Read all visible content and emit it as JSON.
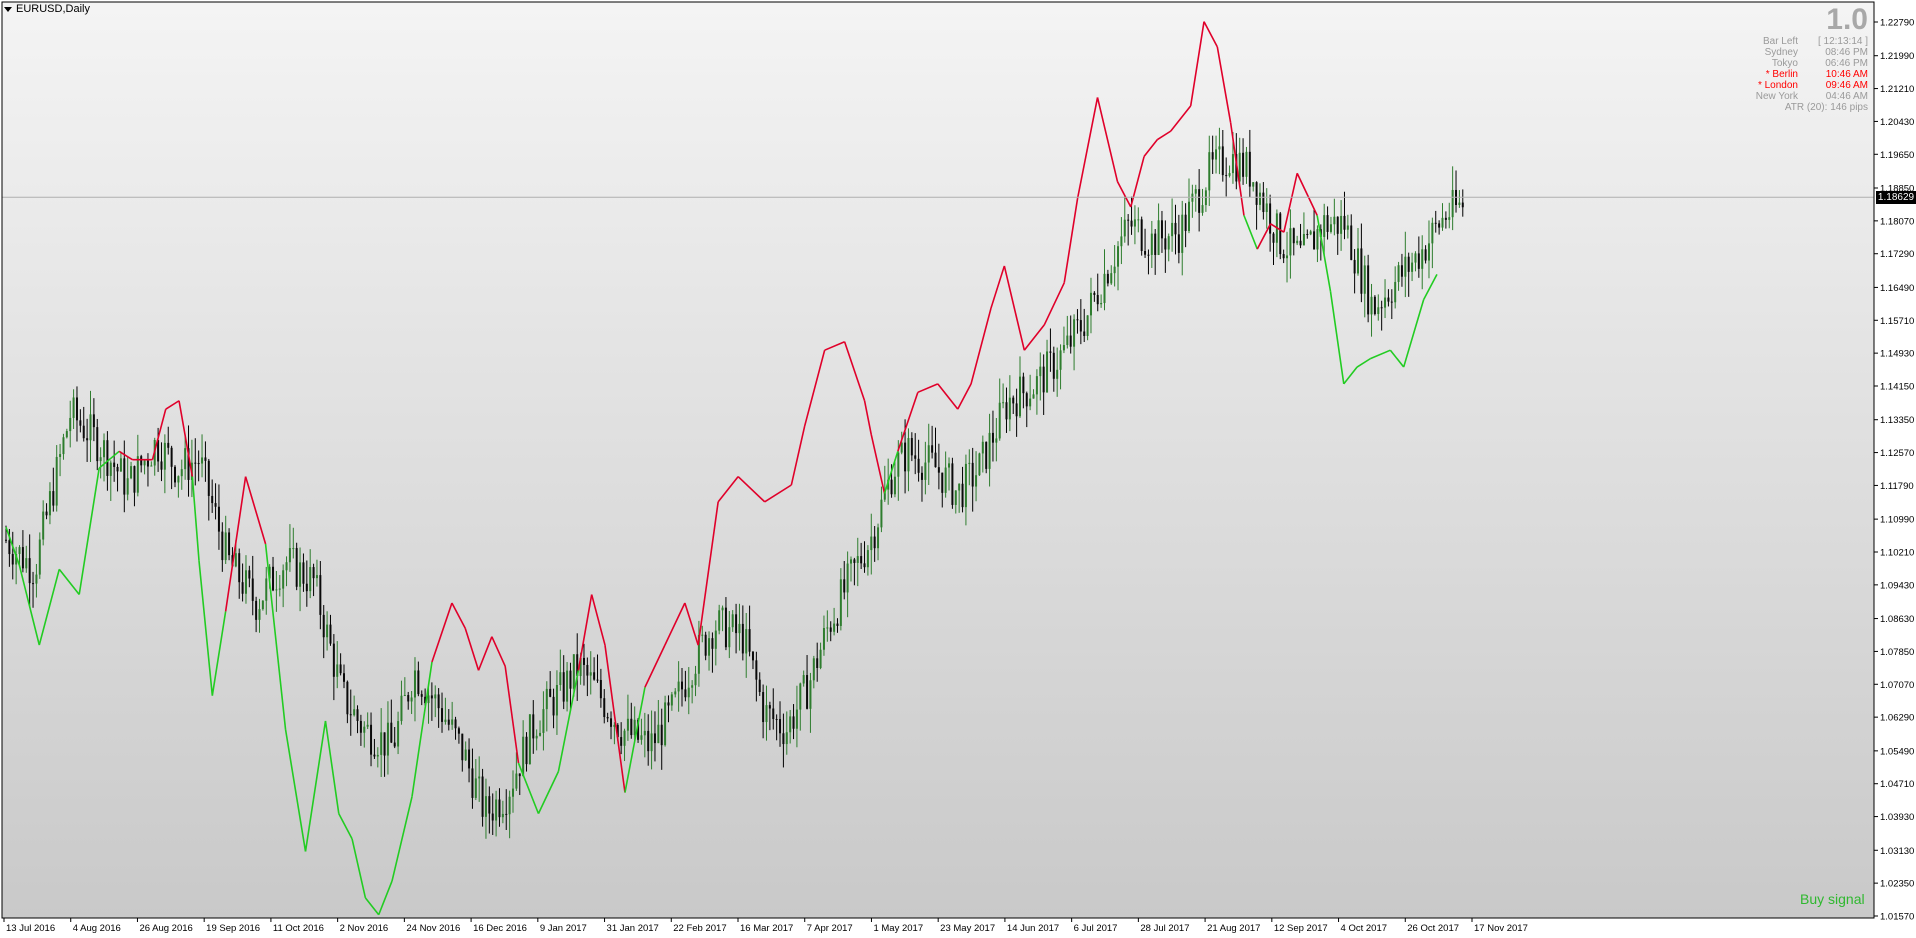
{
  "window": {
    "title": "EURUSD,Daily"
  },
  "info_panel": {
    "big_value": "1.0",
    "rows": [
      {
        "label": "Bar Left",
        "value": "[ 12:13:14 ]",
        "highlight": false
      },
      {
        "label": "Sydney",
        "value": "08:46 PM",
        "highlight": false
      },
      {
        "label": "Tokyo",
        "value": "06:46 PM",
        "highlight": false
      },
      {
        "label": "* Berlin",
        "value": "10:46 AM",
        "highlight": true
      },
      {
        "label": "* London",
        "value": "09:46 AM",
        "highlight": true
      },
      {
        "label": "New York",
        "value": "04:46 AM",
        "highlight": false
      }
    ],
    "atr": "ATR (20): 146 pips"
  },
  "signal_text": "Buy signal",
  "current_price": "1.18629",
  "colors": {
    "bull": "#2e7d2e",
    "bear": "#000000",
    "stop_up": "#22cc22",
    "stop_down": "#e0002a",
    "axis": "#000000",
    "grid": "#b0b0b0"
  },
  "chart_data": {
    "type": "candlestick",
    "symbol": "EURUSD",
    "timeframe": "Daily",
    "x_labels": [
      "13 Jul 2016",
      "4 Aug 2016",
      "26 Aug 2016",
      "19 Sep 2016",
      "11 Oct 2016",
      "2 Nov 2016",
      "24 Nov 2016",
      "16 Dec 2016",
      "9 Jan 2017",
      "31 Jan 2017",
      "22 Feb 2017",
      "16 Mar 2017",
      "7 Apr 2017",
      "1 May 2017",
      "23 May 2017",
      "14 Jun 2017",
      "6 Jul 2017",
      "28 Jul 2017",
      "21 Aug 2017",
      "12 Sep 2017",
      "4 Oct 2017",
      "26 Oct 2017",
      "17 Nov 2017"
    ],
    "y_labels": [
      "1.22790",
      "1.21990",
      "1.21210",
      "1.20430",
      "1.19650",
      "1.18850",
      "1.18070",
      "1.17290",
      "1.16490",
      "1.15710",
      "1.14930",
      "1.14150",
      "1.13350",
      "1.12570",
      "1.11790",
      "1.10990",
      "1.10210",
      "1.09430",
      "1.08630",
      "1.07850",
      "1.07070",
      "1.06290",
      "1.05490",
      "1.04710",
      "1.03930",
      "1.03130",
      "1.02350",
      "1.01570"
    ],
    "ylim": [
      1.0157,
      1.2279
    ],
    "current_price": 1.18629,
    "close_path": [
      [
        0,
        1.105
      ],
      [
        8,
        1.098
      ],
      [
        18,
        1.135
      ],
      [
        26,
        1.128
      ],
      [
        34,
        1.118
      ],
      [
        42,
        1.128
      ],
      [
        48,
        1.122
      ],
      [
        54,
        1.124
      ],
      [
        62,
        1.1
      ],
      [
        70,
        1.09
      ],
      [
        78,
        1.1
      ],
      [
        86,
        1.095
      ],
      [
        94,
        1.068
      ],
      [
        100,
        1.06
      ],
      [
        108,
        1.056
      ],
      [
        114,
        1.074
      ],
      [
        122,
        1.064
      ],
      [
        128,
        1.054
      ],
      [
        134,
        1.04
      ],
      [
        140,
        1.045
      ],
      [
        148,
        1.062
      ],
      [
        156,
        1.07
      ],
      [
        160,
        1.075
      ],
      [
        166,
        1.068
      ],
      [
        172,
        1.06
      ],
      [
        180,
        1.056
      ],
      [
        186,
        1.064
      ],
      [
        192,
        1.076
      ],
      [
        198,
        1.085
      ],
      [
        206,
        1.082
      ],
      [
        212,
        1.064
      ],
      [
        218,
        1.06
      ],
      [
        224,
        1.07
      ],
      [
        230,
        1.085
      ],
      [
        236,
        1.096
      ],
      [
        242,
        1.106
      ],
      [
        248,
        1.122
      ],
      [
        252,
        1.126
      ],
      [
        260,
        1.122
      ],
      [
        266,
        1.116
      ],
      [
        272,
        1.122
      ],
      [
        280,
        1.138
      ],
      [
        288,
        1.142
      ],
      [
        296,
        1.15
      ],
      [
        302,
        1.158
      ],
      [
        308,
        1.17
      ],
      [
        314,
        1.18
      ],
      [
        320,
        1.176
      ],
      [
        328,
        1.178
      ],
      [
        336,
        1.192
      ],
      [
        342,
        1.196
      ],
      [
        348,
        1.192
      ],
      [
        356,
        1.176
      ],
      [
        362,
        1.172
      ],
      [
        368,
        1.18
      ],
      [
        374,
        1.18
      ],
      [
        382,
        1.16
      ],
      [
        390,
        1.168
      ],
      [
        396,
        1.174
      ],
      [
        402,
        1.182
      ],
      [
        408,
        1.185
      ]
    ],
    "stop_path": [
      [
        0,
        1.108
      ],
      [
        4,
        1.099
      ],
      [
        10,
        1.08
      ],
      [
        16,
        1.098
      ],
      [
        22,
        1.092
      ],
      [
        28,
        1.122
      ],
      [
        34,
        1.126
      ],
      [
        38,
        1.124
      ],
      [
        44,
        1.124
      ],
      [
        48,
        1.136
      ],
      [
        52,
        1.138
      ],
      [
        56,
        1.12
      ],
      [
        58,
        1.1
      ],
      [
        62,
        1.068
      ],
      [
        66,
        1.088
      ],
      [
        72,
        1.12
      ],
      [
        78,
        1.104
      ],
      [
        84,
        1.06
      ],
      [
        90,
        1.031
      ],
      [
        96,
        1.062
      ],
      [
        100,
        1.04
      ],
      [
        104,
        1.034
      ],
      [
        108,
        1.02
      ],
      [
        112,
        1.016
      ],
      [
        116,
        1.024
      ],
      [
        122,
        1.044
      ],
      [
        128,
        1.076
      ],
      [
        134,
        1.09
      ],
      [
        138,
        1.084
      ],
      [
        142,
        1.074
      ],
      [
        146,
        1.082
      ],
      [
        150,
        1.075
      ],
      [
        154,
        1.052
      ],
      [
        160,
        1.04
      ],
      [
        166,
        1.05
      ],
      [
        172,
        1.074
      ],
      [
        176,
        1.092
      ],
      [
        180,
        1.08
      ],
      [
        186,
        1.045
      ],
      [
        192,
        1.07
      ],
      [
        198,
        1.08
      ],
      [
        204,
        1.09
      ],
      [
        208,
        1.08
      ],
      [
        214,
        1.114
      ],
      [
        220,
        1.12
      ],
      [
        228,
        1.114
      ],
      [
        236,
        1.118
      ],
      [
        240,
        1.132
      ],
      [
        246,
        1.15
      ],
      [
        252,
        1.152
      ],
      [
        258,
        1.138
      ],
      [
        260,
        1.13
      ],
      [
        264,
        1.116
      ],
      [
        268,
        1.126
      ],
      [
        274,
        1.14
      ],
      [
        280,
        1.142
      ],
      [
        286,
        1.136
      ],
      [
        290,
        1.142
      ],
      [
        296,
        1.16
      ],
      [
        300,
        1.17
      ],
      [
        306,
        1.15
      ],
      [
        312,
        1.156
      ],
      [
        318,
        1.166
      ],
      [
        322,
        1.186
      ],
      [
        328,
        1.21
      ],
      [
        334,
        1.19
      ],
      [
        338,
        1.184
      ],
      [
        342,
        1.196
      ],
      [
        346,
        1.2
      ],
      [
        350,
        1.202
      ],
      [
        356,
        1.208
      ],
      [
        360,
        1.228
      ],
      [
        364,
        1.222
      ],
      [
        368,
        1.204
      ],
      [
        372,
        1.182
      ],
      [
        376,
        1.174
      ],
      [
        380,
        1.18
      ],
      [
        384,
        1.178
      ],
      [
        388,
        1.192
      ],
      [
        394,
        1.182
      ],
      [
        398,
        1.164
      ],
      [
        402,
        1.142
      ],
      [
        406,
        1.146
      ],
      [
        410,
        1.148
      ],
      [
        416,
        1.15
      ],
      [
        420,
        1.146
      ],
      [
        426,
        1.162
      ],
      [
        430,
        1.168
      ]
    ],
    "n_bars": 432,
    "grid": false,
    "legend": "none"
  }
}
